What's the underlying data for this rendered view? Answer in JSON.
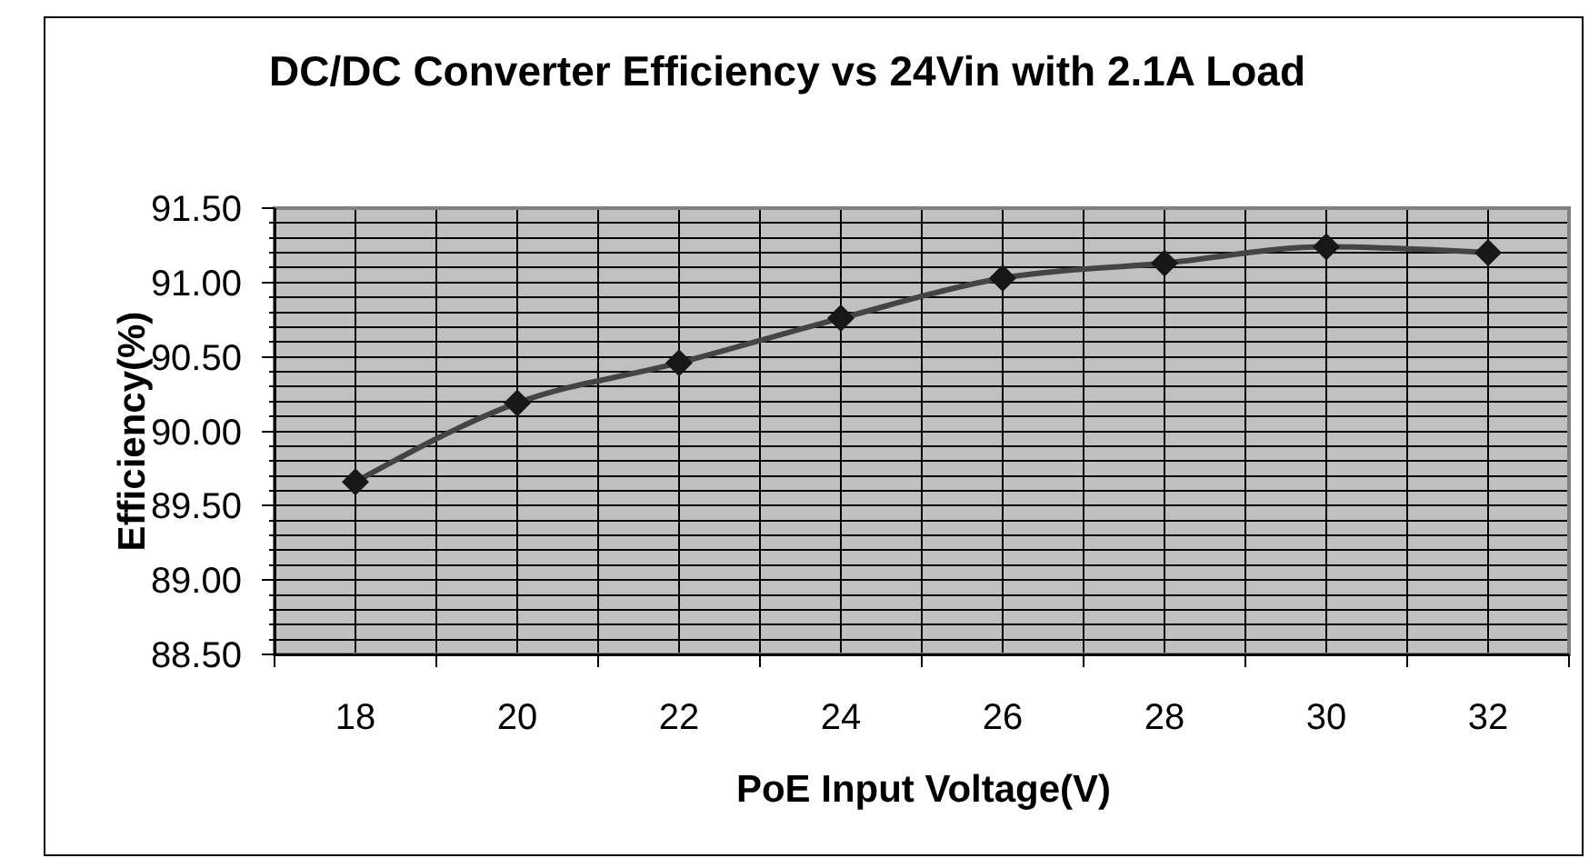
{
  "chart_data": {
    "type": "line",
    "title": "DC/DC Converter Efficiency vs 24Vin with 2.1A Load",
    "xlabel": "PoE Input Voltage(V)",
    "ylabel": "Efficiency(%)",
    "categories": [
      "18",
      "20",
      "22",
      "24",
      "26",
      "28",
      "30",
      "32"
    ],
    "series": [
      {
        "color": "#444444",
        "values": [
          89.66,
          90.19,
          90.46,
          90.76,
          91.03,
          91.13,
          91.24,
          91.2
        ]
      }
    ],
    "ylim": [
      88.5,
      91.5
    ],
    "yticks": [
      {
        "value": 88.5,
        "label": "88.50"
      },
      {
        "value": 88.6,
        "label": null
      },
      {
        "value": 88.7,
        "label": null
      },
      {
        "value": 88.8,
        "label": null
      },
      {
        "value": 88.9,
        "label": null
      },
      {
        "value": 89,
        "label": "89.00"
      },
      {
        "value": 89.1,
        "label": null
      },
      {
        "value": 89.2,
        "label": null
      },
      {
        "value": 89.3,
        "label": null
      },
      {
        "value": 89.4,
        "label": null
      },
      {
        "value": 89.5,
        "label": "89.50"
      },
      {
        "value": 89.6,
        "label": null
      },
      {
        "value": 89.7,
        "label": null
      },
      {
        "value": 89.8,
        "label": null
      },
      {
        "value": 89.9,
        "label": null
      },
      {
        "value": 90,
        "label": "90.00"
      },
      {
        "value": 90.1,
        "label": null
      },
      {
        "value": 90.2,
        "label": null
      },
      {
        "value": 90.3,
        "label": null
      },
      {
        "value": 90.4,
        "label": null
      },
      {
        "value": 90.5,
        "label": "90.50"
      },
      {
        "value": 90.6,
        "label": null
      },
      {
        "value": 90.7,
        "label": null
      },
      {
        "value": 90.8,
        "label": null
      },
      {
        "value": 90.9,
        "label": null
      },
      {
        "value": 91,
        "label": "91.00"
      },
      {
        "value": 91.1,
        "label": null
      },
      {
        "value": 91.2,
        "label": null
      },
      {
        "value": 91.3,
        "label": null
      },
      {
        "value": 91.4,
        "label": null
      },
      {
        "value": 91.5,
        "label": "91.50"
      }
    ],
    "grid": true,
    "marker": "diamond",
    "line_style": "solid"
  }
}
